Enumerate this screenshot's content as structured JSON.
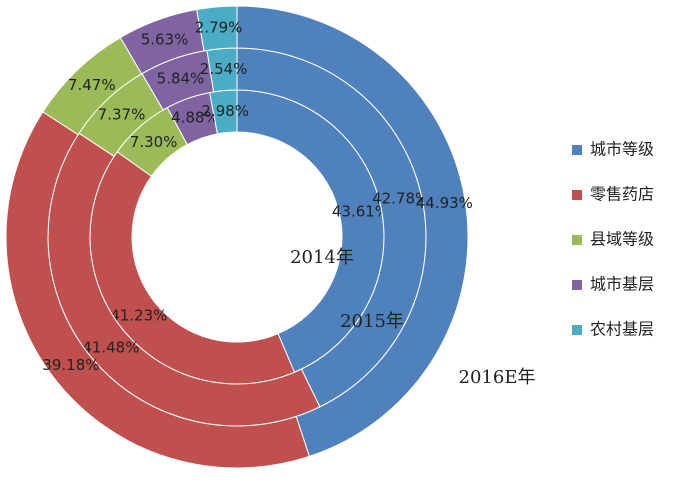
{
  "chart_data": {
    "type": "donut",
    "categories": [
      "城市等级",
      "零售药店",
      "县域等级",
      "城市基层",
      "农村基层"
    ],
    "colors": [
      "#4f81bd",
      "#c0504d",
      "#9bbb59",
      "#8064a2",
      "#4bacc6"
    ],
    "series": [
      {
        "name": "2014年",
        "values": [
          43.61,
          41.23,
          7.3,
          4.88,
          2.98
        ],
        "value_labels": [
          "43.61%",
          "41.23%",
          "7.30%",
          "4.88%",
          "2.98%"
        ]
      },
      {
        "name": "2015年",
        "values": [
          42.78,
          41.48,
          7.37,
          5.84,
          2.54
        ],
        "value_labels": [
          "42.78%",
          "41.48%",
          "7.37%",
          "5.84%",
          "2.54%"
        ]
      },
      {
        "name": "2016E年",
        "values": [
          44.93,
          39.18,
          7.47,
          5.63,
          2.79
        ],
        "value_labels": [
          "44.93%",
          "39.18%",
          "7.47%",
          "5.63%",
          "2.79%"
        ]
      }
    ],
    "legend": "right"
  }
}
